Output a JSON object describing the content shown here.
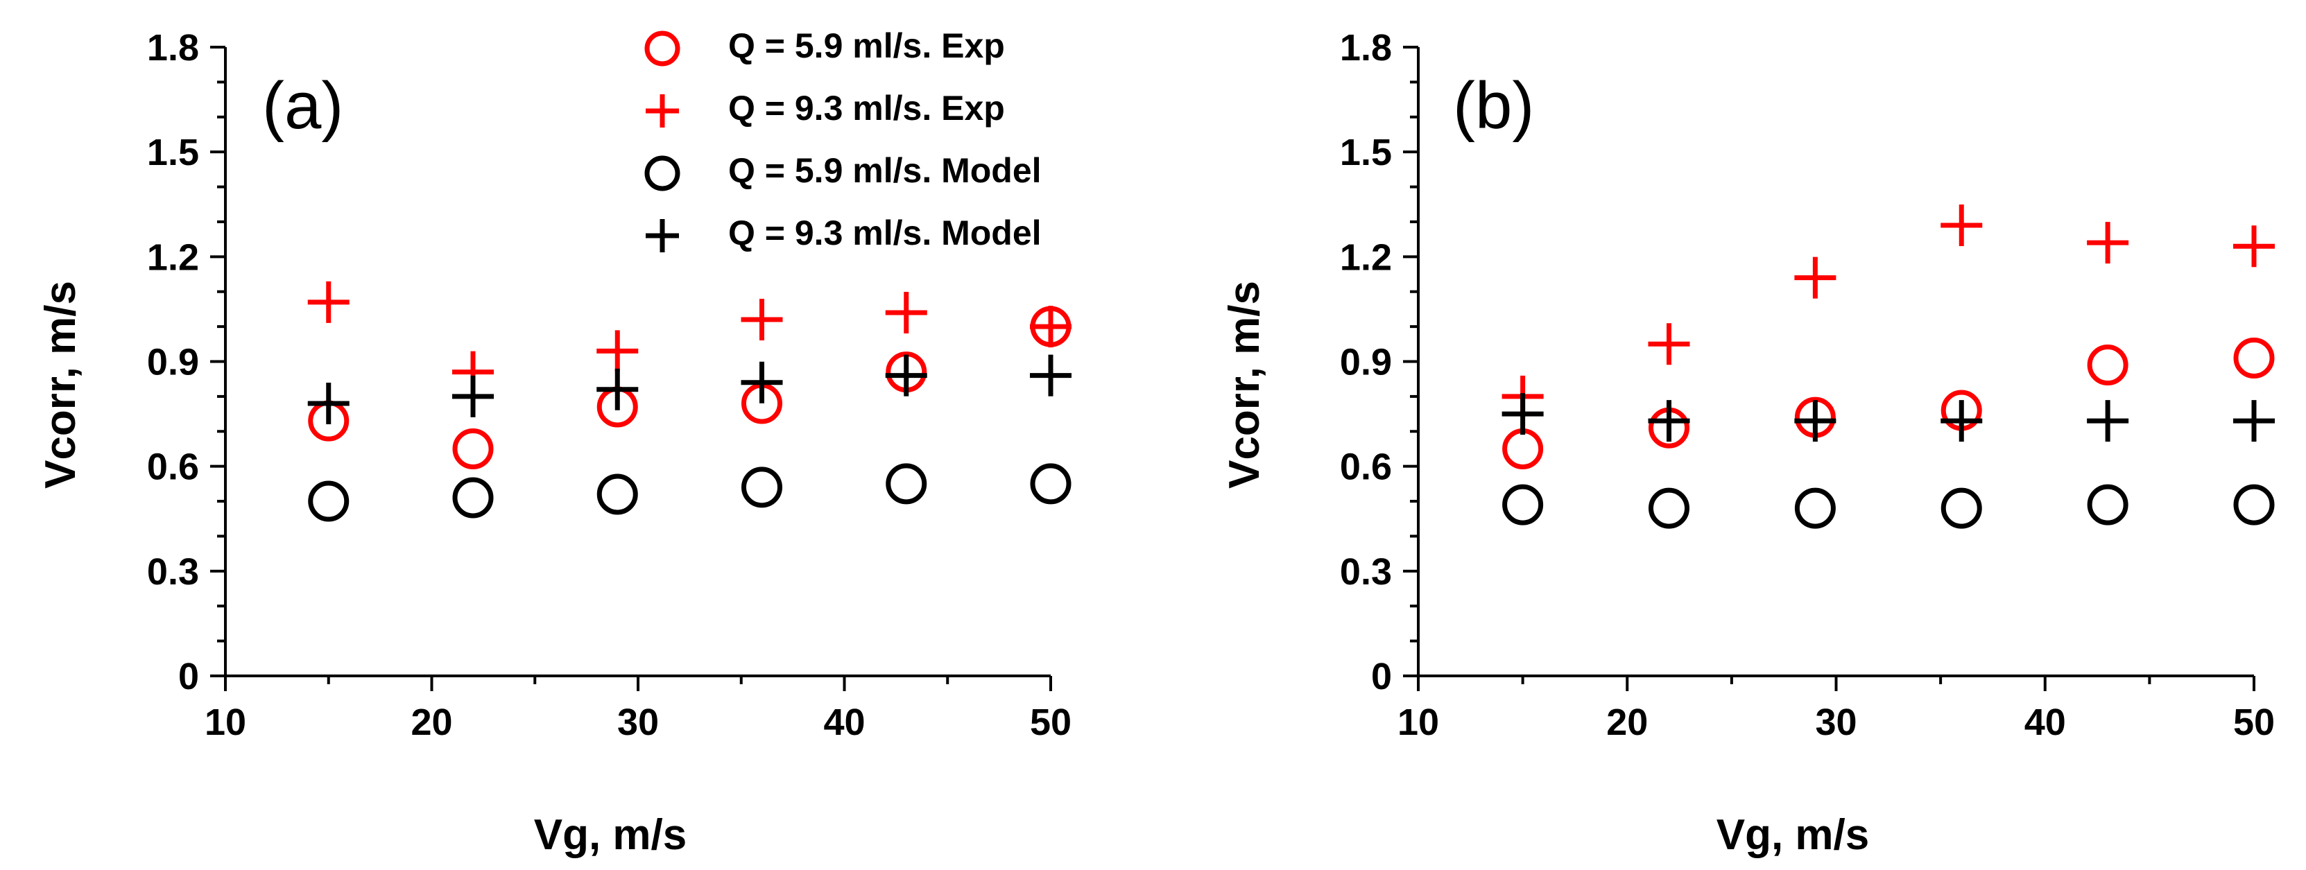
{
  "chart_data": [
    {
      "type": "scatter",
      "panel_label": "(a)",
      "xlabel": "Vg, m/s",
      "ylabel": "Vcorr, m/s",
      "xlim": [
        10,
        50
      ],
      "ylim": [
        0,
        1.8
      ],
      "xticks": [
        "10",
        "20",
        "30",
        "40",
        "50"
      ],
      "yticks": [
        "0",
        "0.3",
        "0.6",
        "0.9",
        "1.2",
        "1.5",
        "1.8"
      ],
      "x": [
        15,
        22,
        29,
        36,
        43,
        50
      ],
      "legend_position": "top-center",
      "series": [
        {
          "name": "Q = 5.9 ml/s. Exp",
          "marker": "circle",
          "color": "#ff0000",
          "values": [
            0.73,
            0.65,
            0.77,
            0.78,
            0.87,
            1.0
          ]
        },
        {
          "name": "Q = 9.3 ml/s. Exp",
          "marker": "plus",
          "color": "#ff0000",
          "values": [
            1.07,
            0.87,
            0.93,
            1.02,
            1.04,
            1.0
          ]
        },
        {
          "name": "Q = 5.9 ml/s. Model",
          "marker": "circle",
          "color": "#000000",
          "values": [
            0.5,
            0.51,
            0.52,
            0.54,
            0.55,
            0.55
          ]
        },
        {
          "name": "Q = 9.3 ml/s. Model",
          "marker": "plus",
          "color": "#000000",
          "values": [
            0.78,
            0.8,
            0.82,
            0.84,
            0.86,
            0.86
          ]
        }
      ]
    },
    {
      "type": "scatter",
      "panel_label": "(b)",
      "xlabel": "Vg, m/s",
      "ylabel": "Vcorr, m/s",
      "xlim": [
        10,
        50
      ],
      "ylim": [
        0,
        1.8
      ],
      "xticks": [
        "10",
        "20",
        "30",
        "40",
        "50"
      ],
      "yticks": [
        "0",
        "0.3",
        "0.6",
        "0.9",
        "1.2",
        "1.5",
        "1.8"
      ],
      "x": [
        15,
        22,
        29,
        36,
        43,
        50
      ],
      "series": [
        {
          "name": "Q = 5.9 ml/s. Exp",
          "marker": "circle",
          "color": "#ff0000",
          "values": [
            0.65,
            0.71,
            0.74,
            0.76,
            0.89,
            0.91
          ]
        },
        {
          "name": "Q = 9.3 ml/s. Exp",
          "marker": "plus",
          "color": "#ff0000",
          "values": [
            0.8,
            0.95,
            1.14,
            1.29,
            1.24,
            1.23
          ]
        },
        {
          "name": "Q = 5.9 ml/s. Model",
          "marker": "circle",
          "color": "#000000",
          "values": [
            0.49,
            0.48,
            0.48,
            0.48,
            0.49,
            0.49
          ]
        },
        {
          "name": "Q = 9.3 ml/s. Model",
          "marker": "plus",
          "color": "#000000",
          "values": [
            0.75,
            0.73,
            0.73,
            0.73,
            0.73,
            0.73
          ]
        }
      ]
    }
  ]
}
